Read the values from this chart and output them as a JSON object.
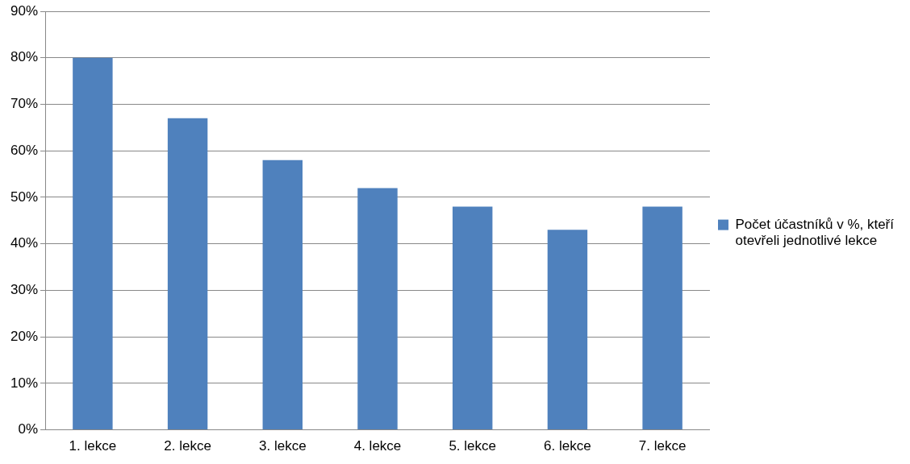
{
  "chart_data": {
    "type": "bar",
    "categories": [
      "1. lekce",
      "2. lekce",
      "3. lekce",
      "4. lekce",
      "5. lekce",
      "6. lekce",
      "7. lekce"
    ],
    "series": [
      {
        "name": "Počet účastníků v %, kteří otevřeli jednotlivé lekce",
        "color": "#4f81bd",
        "values": [
          80,
          67,
          58,
          52,
          48,
          43,
          48
        ]
      }
    ],
    "ylim": [
      0,
      90
    ],
    "yticks": [
      {
        "value": 0,
        "label": "0%"
      },
      {
        "value": 10,
        "label": "10%"
      },
      {
        "value": 20,
        "label": "20%"
      },
      {
        "value": 30,
        "label": "30%"
      },
      {
        "value": 40,
        "label": "40%"
      },
      {
        "value": 50,
        "label": "50%"
      },
      {
        "value": 60,
        "label": "60%"
      },
      {
        "value": 70,
        "label": "70%"
      },
      {
        "value": 80,
        "label": "80%"
      },
      {
        "value": 90,
        "label": "90%"
      }
    ],
    "grid": "y",
    "legend": "right"
  }
}
